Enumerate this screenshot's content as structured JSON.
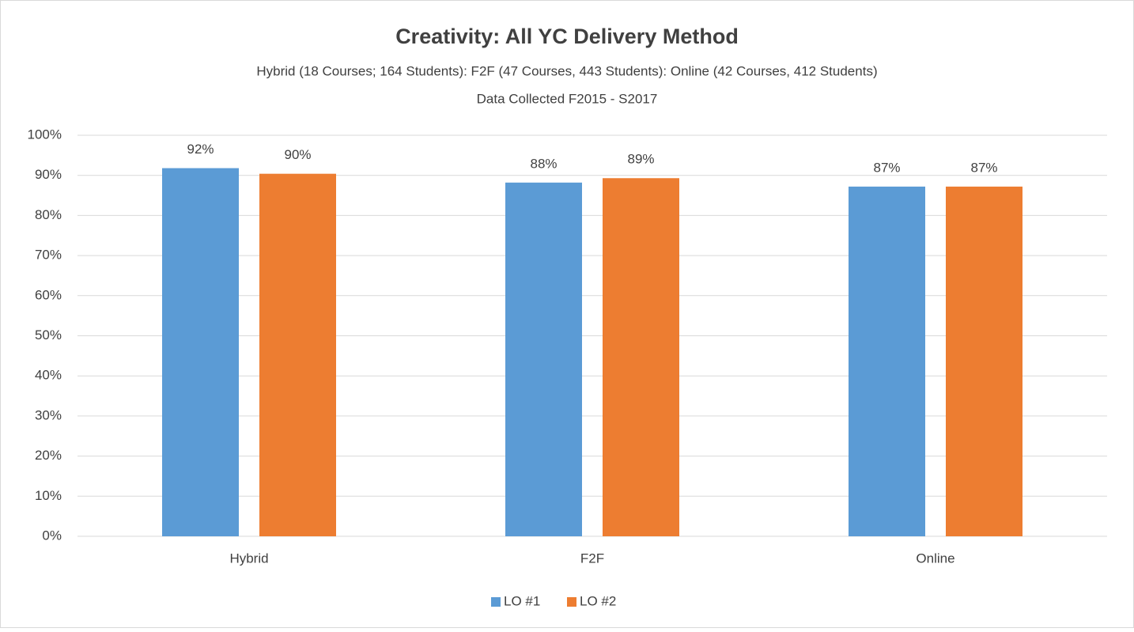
{
  "chart_data": {
    "type": "bar",
    "title": "Creativity:  All YC Delivery Method",
    "subtitle": "Hybrid (18 Courses; 164 Students):  F2F (47 Courses, 443 Students):  Online (42 Courses, 412 Students)",
    "note": "Data Collected F2015 - S2017",
    "categories": [
      "Hybrid",
      "F2F",
      "Online"
    ],
    "series": [
      {
        "name": "LO #1",
        "color": "#5b9bd5",
        "values": [
          91.8,
          88.2,
          87.2
        ],
        "value_labels": [
          "92%",
          "88%",
          "87%"
        ]
      },
      {
        "name": "LO #2",
        "color": "#ed7d31",
        "values": [
          90.4,
          89.3,
          87.2
        ],
        "value_labels": [
          "90%",
          "89%",
          "87%"
        ]
      }
    ],
    "ylim": [
      0,
      100
    ],
    "yticks": [
      {
        "value": 0,
        "label": "0%"
      },
      {
        "value": 10,
        "label": "10%"
      },
      {
        "value": 20,
        "label": "20%"
      },
      {
        "value": 30,
        "label": "30%"
      },
      {
        "value": 40,
        "label": "40%"
      },
      {
        "value": 50,
        "label": "50%"
      },
      {
        "value": 60,
        "label": "60%"
      },
      {
        "value": 70,
        "label": "70%"
      },
      {
        "value": 80,
        "label": "80%"
      },
      {
        "value": 90,
        "label": "90%"
      },
      {
        "value": 100,
        "label": "100%"
      }
    ],
    "grid": true,
    "legend": "bottom"
  }
}
